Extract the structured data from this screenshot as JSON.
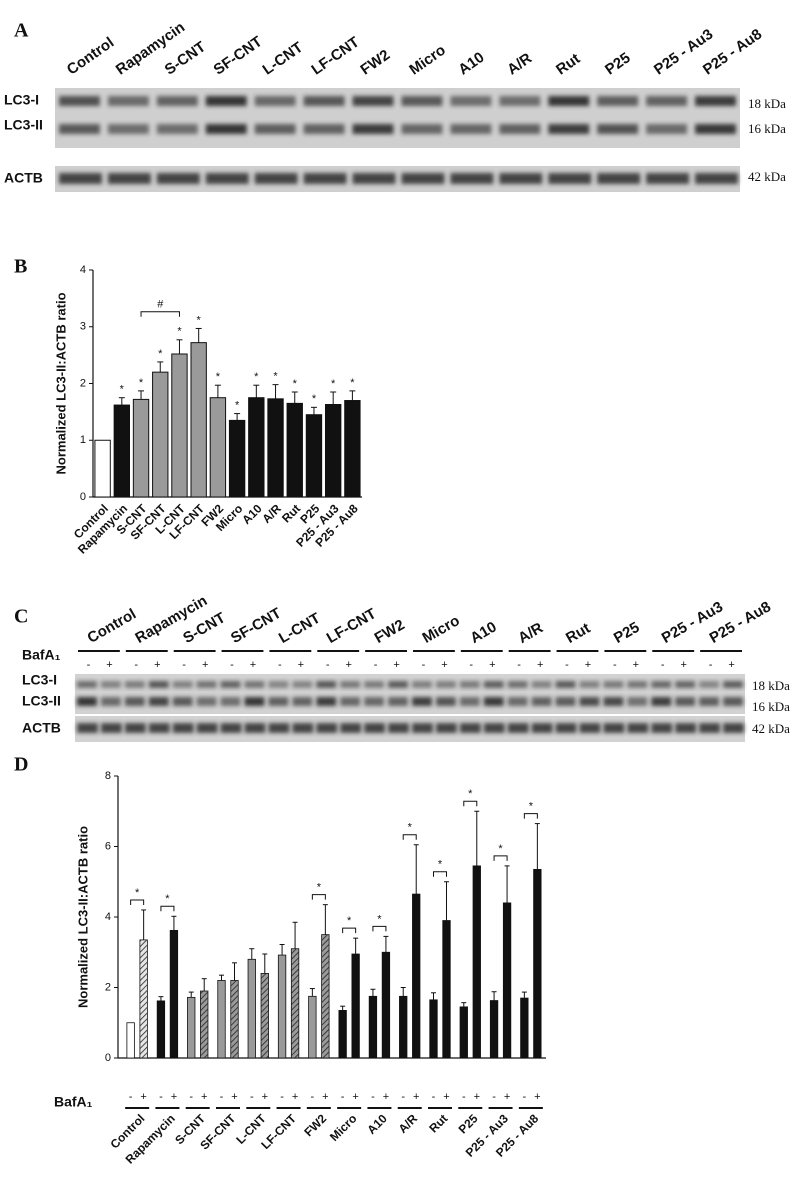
{
  "panel_a": {
    "letter": "A",
    "lanes": [
      "Control",
      "Rapamycin",
      "S-CNT",
      "SF-CNT",
      "L-CNT",
      "LF-CNT",
      "FW2",
      "Micro",
      "A10",
      "A/R",
      "Rut",
      "P25",
      "P25 - Au3",
      "P25 - Au8"
    ],
    "rows": [
      "LC3-I",
      "LC3-II"
    ],
    "sizes": [
      "18 kDa",
      "16 kDa"
    ],
    "loading_row": "ACTB",
    "loading_size": "42 kDa"
  },
  "panel_c": {
    "letter": "C",
    "lanes": [
      "Control",
      "Rapamycin",
      "S-CNT",
      "SF-CNT",
      "L-CNT",
      "LF-CNT",
      "FW2",
      "Micro",
      "A10",
      "A/R",
      "Rut",
      "P25",
      "P25 - Au3",
      "P25 - Au8"
    ],
    "treatment": "BafA₁",
    "minus": "-",
    "plus": "+",
    "rows": [
      "LC3-I",
      "LC3-II"
    ],
    "sizes": [
      "18 kDa",
      "16 kDa"
    ],
    "loading_row": "ACTB",
    "loading_size": "42 kDa"
  },
  "chart_data": [
    {
      "type": "bar",
      "panel": "B",
      "ylabel": "Normalized LC3-II:ACTB ratio",
      "categories": [
        "Control",
        "Rapamycin",
        "S-CNT",
        "SF-CNT",
        "L-CNT",
        "LF-CNT",
        "FW2",
        "Micro",
        "A10",
        "A/R",
        "Rut",
        "P25",
        "P25 - Au3",
        "P25 - Au8"
      ],
      "values": [
        1.0,
        1.62,
        1.72,
        2.2,
        2.52,
        2.72,
        1.75,
        1.35,
        1.75,
        1.73,
        1.65,
        1.45,
        1.63,
        1.7
      ],
      "errors": [
        0,
        0.13,
        0.15,
        0.18,
        0.25,
        0.25,
        0.22,
        0.12,
        0.22,
        0.25,
        0.2,
        0.13,
        0.22,
        0.17
      ],
      "colors": [
        "#ffffff",
        "#111111",
        "#9a9a9a",
        "#9a9a9a",
        "#9a9a9a",
        "#9a9a9a",
        "#9a9a9a",
        "#111111",
        "#111111",
        "#111111",
        "#111111",
        "#111111",
        "#111111",
        "#111111"
      ],
      "significant": [
        false,
        true,
        true,
        true,
        true,
        true,
        true,
        true,
        true,
        true,
        true,
        true,
        true,
        true
      ],
      "sig_label": "*",
      "bracket": {
        "label": "#",
        "from": 2,
        "to": 4
      },
      "ylim": [
        0,
        4
      ],
      "yticks": [
        0,
        1,
        2,
        3,
        4
      ]
    },
    {
      "type": "grouped_bar",
      "panel": "D",
      "ylabel": "Normalized LC3-II:ACTB ratio",
      "treatment": "BafA₁",
      "categories": [
        "Control",
        "Rapamycin",
        "S-CNT",
        "SF-CNT",
        "L-CNT",
        "LF-CNT",
        "FW2",
        "Micro",
        "A10",
        "A/R",
        "Rut",
        "P25",
        "P25 - Au3",
        "P25 - Au8"
      ],
      "series": [
        {
          "name": "-",
          "values": [
            1.0,
            1.62,
            1.72,
            2.2,
            2.8,
            2.92,
            1.75,
            1.35,
            1.75,
            1.75,
            1.65,
            1.45,
            1.63,
            1.7
          ],
          "errors": [
            0,
            0.12,
            0.15,
            0.15,
            0.3,
            0.3,
            0.22,
            0.12,
            0.2,
            0.25,
            0.2,
            0.12,
            0.25,
            0.17
          ],
          "colors": [
            "#ffffff",
            "#111111",
            "#9a9a9a",
            "#9a9a9a",
            "#9a9a9a",
            "#9a9a9a",
            "#9a9a9a",
            "#111111",
            "#111111",
            "#111111",
            "#111111",
            "#111111",
            "#111111",
            "#111111"
          ],
          "hatched": [
            false,
            false,
            false,
            false,
            false,
            false,
            false,
            false,
            false,
            false,
            false,
            false,
            false,
            false
          ]
        },
        {
          "name": "+",
          "values": [
            3.35,
            3.62,
            1.9,
            2.2,
            2.4,
            3.1,
            3.5,
            2.95,
            3.0,
            4.65,
            3.9,
            5.45,
            4.4,
            5.35
          ],
          "errors": [
            0.85,
            0.4,
            0.35,
            0.5,
            0.55,
            0.75,
            0.85,
            0.45,
            0.45,
            1.4,
            1.1,
            1.55,
            1.05,
            1.3
          ],
          "colors": [
            "#e6e6e6",
            "#111111",
            "#9a9a9a",
            "#9a9a9a",
            "#9a9a9a",
            "#9a9a9a",
            "#9a9a9a",
            "#111111",
            "#111111",
            "#111111",
            "#111111",
            "#111111",
            "#111111",
            "#111111"
          ],
          "hatched": [
            true,
            false,
            true,
            true,
            true,
            true,
            true,
            false,
            false,
            false,
            false,
            false,
            false,
            false
          ]
        }
      ],
      "significant": [
        true,
        true,
        false,
        false,
        false,
        false,
        true,
        true,
        true,
        true,
        true,
        true,
        true,
        true
      ],
      "sig_label": "*",
      "ylim": [
        0,
        8
      ],
      "yticks": [
        0,
        2,
        4,
        6,
        8
      ]
    }
  ]
}
